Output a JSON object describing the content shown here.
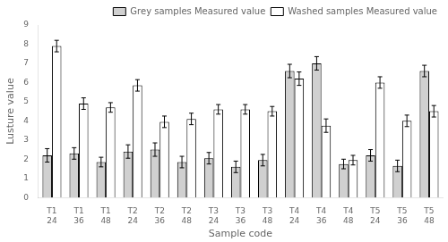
{
  "chart_data": {
    "type": "bar",
    "xlabel": "Sample code",
    "ylabel": "Lusture value",
    "categories": [
      "T1\n24",
      "T1\n36",
      "T1\n48",
      "T2\n24",
      "T2\n36",
      "T2\n48",
      "T3\n24",
      "T3\n36",
      "T3\n48",
      "T4\n24",
      "T4\n36",
      "T4\n48",
      "T5\n24",
      "T5\n36",
      "T5\n48"
    ],
    "series": [
      {
        "name": "Grey samples Measured value",
        "color": "#d0d0d0",
        "values": [
          2.2,
          2.3,
          1.85,
          2.4,
          2.5,
          1.85,
          2.05,
          1.6,
          1.95,
          6.6,
          7.0,
          1.75,
          2.2,
          1.65,
          6.6
        ],
        "errors": [
          0.35,
          0.3,
          0.25,
          0.35,
          0.35,
          0.3,
          0.3,
          0.3,
          0.3,
          0.35,
          0.35,
          0.25,
          0.3,
          0.3,
          0.3
        ]
      },
      {
        "name": "Washed samples Measured value",
        "color": "#ffffff",
        "values": [
          7.9,
          4.9,
          4.7,
          5.85,
          3.95,
          4.1,
          4.6,
          4.6,
          4.5,
          6.2,
          3.75,
          1.95,
          6.0,
          4.0,
          4.5
        ],
        "errors": [
          0.3,
          0.3,
          0.25,
          0.3,
          0.3,
          0.3,
          0.25,
          0.25,
          0.25,
          0.35,
          0.35,
          0.25,
          0.3,
          0.3,
          0.3
        ]
      }
    ],
    "ylim": [
      0,
      9
    ],
    "yticks": [
      0,
      1,
      2,
      3,
      4,
      5,
      6,
      7,
      8,
      9
    ],
    "grid": false,
    "legend": "upper right"
  }
}
